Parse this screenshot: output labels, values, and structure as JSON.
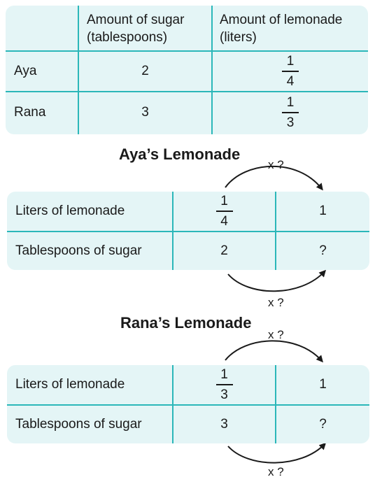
{
  "summary_table": {
    "headers": [
      "",
      "Amount of sugar\n(tablespoons)",
      "Amount of lemonade\n(liters)"
    ],
    "header_sugar_line1": "Amount of sugar",
    "header_sugar_line2": "(tablespoons)",
    "header_lemonade_line1": "Amount of lemonade",
    "header_lemonade_line2": "(liters)",
    "rows": [
      {
        "name": "Aya",
        "sugar": "2",
        "lemonade_num": "1",
        "lemonade_den": "4"
      },
      {
        "name": "Rana",
        "sugar": "3",
        "lemonade_num": "1",
        "lemonade_den": "3"
      }
    ]
  },
  "aya": {
    "title": "Aya’s Lemonade",
    "arrow_top_label": "x ?",
    "arrow_bottom_label": "x ?",
    "row1_label": "Liters of lemonade",
    "row1_num": "1",
    "row1_den": "4",
    "row1_result": "1",
    "row2_label": "Tablespoons of sugar",
    "row2_value": "2",
    "row2_result": "?"
  },
  "rana": {
    "title": "Rana’s Lemonade",
    "arrow_top_label": "x ?",
    "arrow_bottom_label": "x ?",
    "row1_label": "Liters of lemonade",
    "row1_num": "1",
    "row1_den": "3",
    "row1_result": "1",
    "row2_label": "Tablespoons of sugar",
    "row2_value": "3",
    "row2_result": "?"
  },
  "colors": {
    "panel": "#e4f5f6",
    "grid": "#2bb7b9",
    "text": "#1a1a1a"
  }
}
